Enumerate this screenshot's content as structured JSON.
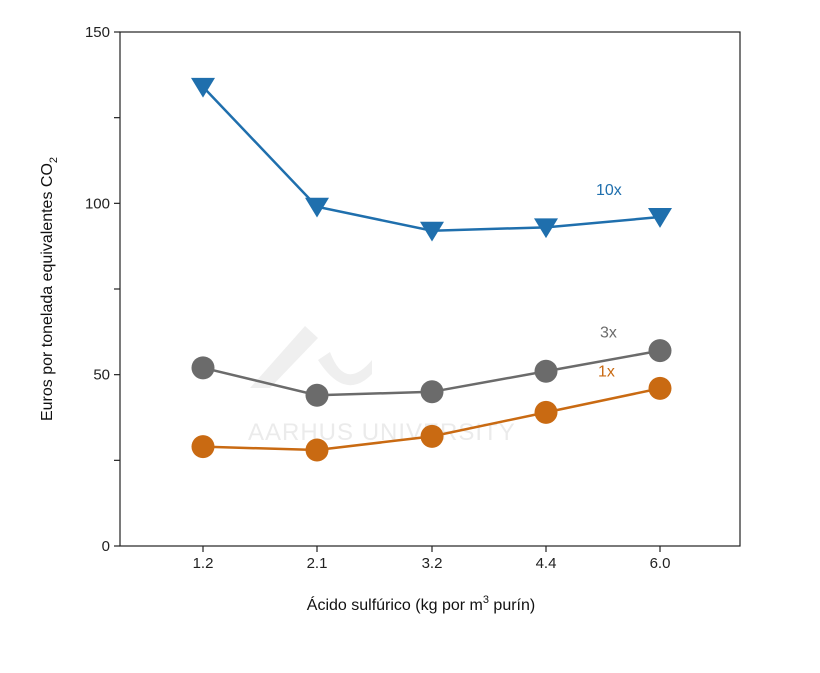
{
  "chart_data": {
    "type": "line",
    "categories": [
      "1.2",
      "2.1",
      "3.2",
      "4.4",
      "6.0"
    ],
    "xlabel": {
      "pre": "Ácido sulfúrico (kg por m",
      "sup": "3",
      "post": " purín)"
    },
    "ylabel": {
      "pre": "Euros por tonelada equivalentes  CO",
      "sub": "2"
    },
    "ylim": [
      0,
      150
    ],
    "yticks": [
      0,
      50,
      100,
      150
    ],
    "grid": false,
    "series": [
      {
        "name": "10x",
        "values": [
          134,
          99,
          92,
          93,
          96
        ],
        "color": "#1f6fad",
        "marker": "triangle-down"
      },
      {
        "name": "3x",
        "values": [
          52,
          44,
          45,
          51,
          57
        ],
        "color": "#6b6b6b",
        "marker": "circle"
      },
      {
        "name": "1x",
        "values": [
          29,
          28,
          32,
          39,
          46
        ],
        "color": "#c96a12",
        "marker": "circle"
      }
    ]
  },
  "watermark": {
    "text": "AARHUS UNIVERSITY",
    "logo": "aarhus-university-logo"
  }
}
